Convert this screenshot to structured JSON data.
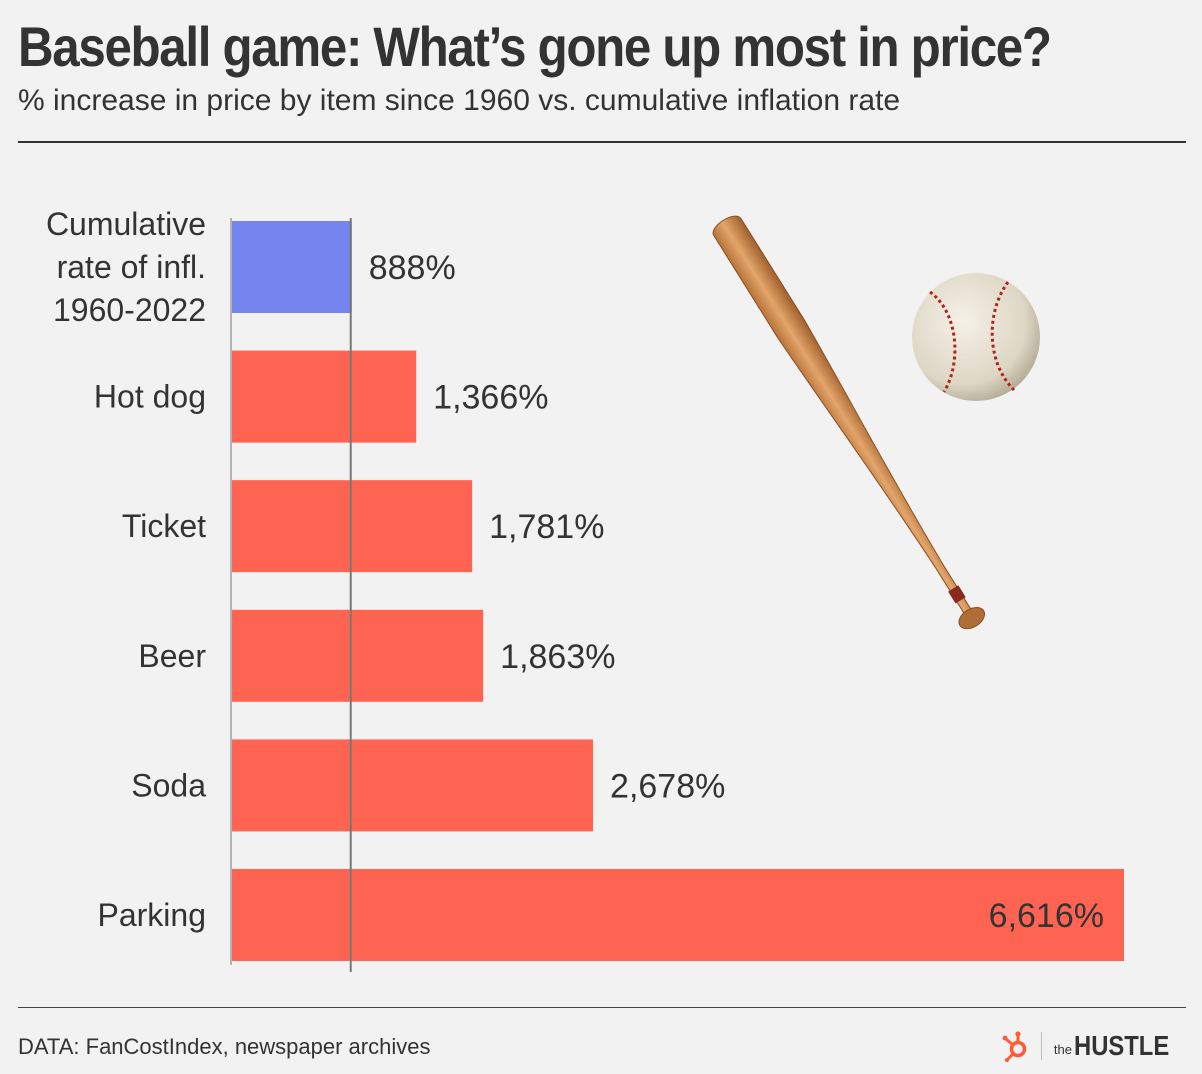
{
  "header": {
    "title": "Baseball game: What’s gone up most in price?",
    "subtitle": "% increase in price by item since 1960 vs. cumulative inflation rate"
  },
  "footer": {
    "source": "DATA: FanCostIndex, newspaper archives",
    "brand_the": "the",
    "brand_name": "HUSTLE"
  },
  "colors": {
    "inflation_bar": "#7585ef",
    "item_bar": "#ff6452",
    "text": "#333333",
    "background": "#f2f2f2"
  },
  "icons": [
    "baseball-bat-icon",
    "baseball-icon",
    "hubspot-sprocket-icon"
  ],
  "chart_data": {
    "type": "bar",
    "orientation": "horizontal",
    "categories": [
      [
        "Cumulative",
        "rate of infl.",
        "1960-2022"
      ],
      [
        "Hot dog"
      ],
      [
        "Ticket"
      ],
      [
        "Beer"
      ],
      [
        "Soda"
      ],
      [
        "Parking"
      ]
    ],
    "values": [
      888,
      1366,
      1781,
      1863,
      2678,
      6616
    ],
    "value_labels": [
      "888%",
      "1,366%",
      "1,781%",
      "1,863%",
      "2,678%",
      "6,616%"
    ],
    "reference_line": 888,
    "xlim": [
      0,
      6616
    ],
    "grid": false,
    "legend": "none"
  }
}
